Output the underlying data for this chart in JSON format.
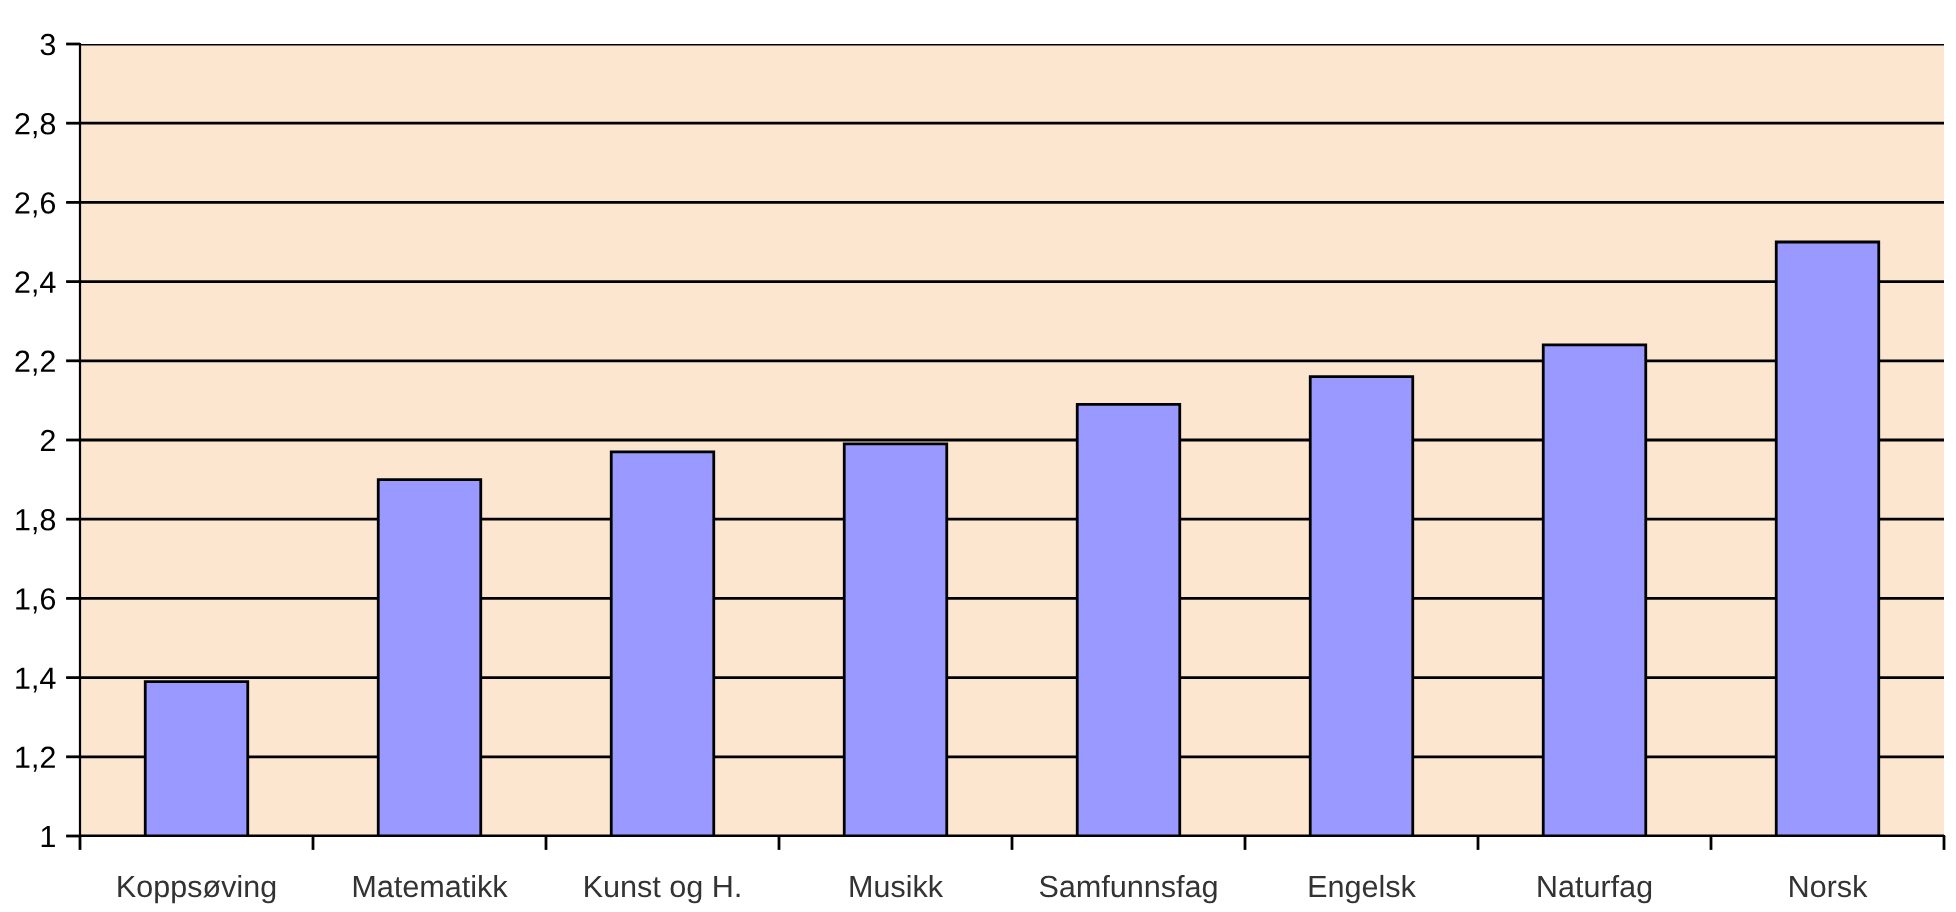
{
  "chart_data": {
    "type": "bar",
    "categories": [
      "Koppsøving",
      "Matematikk",
      "Kunst og H.",
      "Musikk",
      "Samfunnsfag",
      "Engelsk",
      "Naturfag",
      "Norsk"
    ],
    "values": [
      1.39,
      1.9,
      1.97,
      1.99,
      2.09,
      2.16,
      2.24,
      2.5
    ],
    "color": "#9999ff",
    "ylim": [
      1,
      3
    ],
    "yticks": [
      1,
      {
        "value": 1.2,
        "label": "1,2"
      },
      {
        "value": 1.4,
        "label": "1,4"
      },
      {
        "value": 1.6,
        "label": "1,6"
      },
      {
        "value": 1.8,
        "label": "1,8"
      },
      2,
      {
        "value": 2.2,
        "label": "2,2"
      },
      {
        "value": 2.4,
        "label": "2,4"
      },
      {
        "value": 2.6,
        "label": "2,6"
      },
      {
        "value": 2.8,
        "label": "2,8"
      },
      3
    ],
    "grid": "y"
  }
}
